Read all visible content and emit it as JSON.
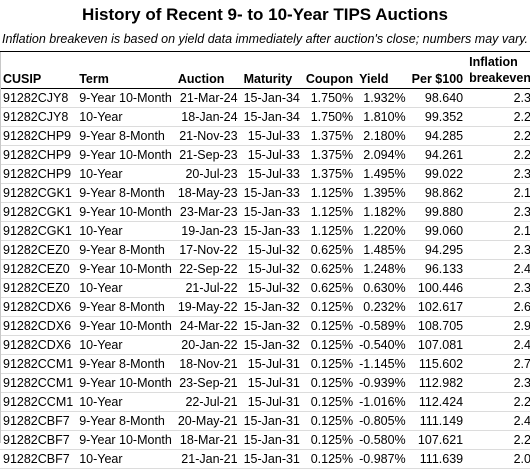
{
  "title": "History of Recent 9- to 10-Year TIPS Auctions",
  "subtitle": "Inflation breakeven is based on yield data immediately after auction's close; numbers may vary.",
  "columns": {
    "cusip": "CUSIP",
    "term": "Term",
    "auction": "Auction",
    "maturity": "Maturity",
    "coupon": "Coupon",
    "yield": "Yield",
    "price": "Per $100",
    "breakeven_line1": "Inflation",
    "breakeven_line2": "breakeven"
  },
  "rows": [
    {
      "cusip": "91282CJY8",
      "term": "9-Year 10-Month",
      "auction": "21-Mar-24",
      "maturity": "15-Jan-34",
      "coupon": "1.750%",
      "yield": "1.932%",
      "price": "98.640",
      "breakeven": "2.3"
    },
    {
      "cusip": "91282CJY8",
      "term": "10-Year",
      "auction": "18-Jan-24",
      "maturity": "15-Jan-34",
      "coupon": "1.750%",
      "yield": "1.810%",
      "price": "99.352",
      "breakeven": "2.2"
    },
    {
      "cusip": "91282CHP9",
      "term": "9-Year 8-Month",
      "auction": "21-Nov-23",
      "maturity": "15-Jul-33",
      "coupon": "1.375%",
      "yield": "2.180%",
      "price": "94.285",
      "breakeven": "2.2"
    },
    {
      "cusip": "91282CHP9",
      "term": "9-Year 10-Month",
      "auction": "21-Sep-23",
      "maturity": "15-Jul-33",
      "coupon": "1.375%",
      "yield": "2.094%",
      "price": "94.261",
      "breakeven": "2.2"
    },
    {
      "cusip": "91282CHP9",
      "term": "10-Year",
      "auction": "20-Jul-23",
      "maturity": "15-Jul-33",
      "coupon": "1.375%",
      "yield": "1.495%",
      "price": "99.022",
      "breakeven": "2.3"
    },
    {
      "cusip": "91282CGK1",
      "term": "9-Year 8-Month",
      "auction": "18-May-23",
      "maturity": "15-Jan-33",
      "coupon": "1.125%",
      "yield": "1.395%",
      "price": "98.862",
      "breakeven": "2.1"
    },
    {
      "cusip": "91282CGK1",
      "term": "9-Year 10-Month",
      "auction": "23-Mar-23",
      "maturity": "15-Jan-33",
      "coupon": "1.125%",
      "yield": "1.182%",
      "price": "99.880",
      "breakeven": "2.3"
    },
    {
      "cusip": "91282CGK1",
      "term": "10-Year",
      "auction": "19-Jan-23",
      "maturity": "15-Jan-33",
      "coupon": "1.125%",
      "yield": "1.220%",
      "price": "99.060",
      "breakeven": "2.1"
    },
    {
      "cusip": "91282CEZ0",
      "term": "9-Year 8-Month",
      "auction": "17-Nov-22",
      "maturity": "15-Jul-32",
      "coupon": "0.625%",
      "yield": "1.485%",
      "price": "94.295",
      "breakeven": "2.3"
    },
    {
      "cusip": "91282CEZ0",
      "term": "9-Year 10-Month",
      "auction": "22-Sep-22",
      "maturity": "15-Jul-32",
      "coupon": "0.625%",
      "yield": "1.248%",
      "price": "96.133",
      "breakeven": "2.4"
    },
    {
      "cusip": "91282CEZ0",
      "term": "10-Year",
      "auction": "21-Jul-22",
      "maturity": "15-Jul-32",
      "coupon": "0.625%",
      "yield": "0.630%",
      "price": "100.446",
      "breakeven": "2.3"
    },
    {
      "cusip": "91282CDX6",
      "term": "9-Year 8-Month",
      "auction": "19-May-22",
      "maturity": "15-Jan-32",
      "coupon": "0.125%",
      "yield": "0.232%",
      "price": "102.617",
      "breakeven": "2.6"
    },
    {
      "cusip": "91282CDX6",
      "term": "9-Year 10-Month",
      "auction": "24-Mar-22",
      "maturity": "15-Jan-32",
      "coupon": "0.125%",
      "yield": "-0.589%",
      "price": "108.705",
      "breakeven": "2.9"
    },
    {
      "cusip": "91282CDX6",
      "term": "10-Year",
      "auction": "20-Jan-22",
      "maturity": "15-Jan-32",
      "coupon": "0.125%",
      "yield": "-0.540%",
      "price": "107.081",
      "breakeven": "2.4"
    },
    {
      "cusip": "91282CCM1",
      "term": "9-Year 8-Month",
      "auction": "18-Nov-21",
      "maturity": "15-Jul-31",
      "coupon": "0.125%",
      "yield": "-1.145%",
      "price": "115.602",
      "breakeven": "2.7"
    },
    {
      "cusip": "91282CCM1",
      "term": "9-Year 10-Month",
      "auction": "23-Sep-21",
      "maturity": "15-Jul-31",
      "coupon": "0.125%",
      "yield": "-0.939%",
      "price": "112.982",
      "breakeven": "2.3"
    },
    {
      "cusip": "91282CCM1",
      "term": "10-Year",
      "auction": "22-Jul-21",
      "maturity": "15-Jul-31",
      "coupon": "0.125%",
      "yield": "-1.016%",
      "price": "112.424",
      "breakeven": "2.2"
    },
    {
      "cusip": "91282CBF7",
      "term": "9-Year 8-Month",
      "auction": "20-May-21",
      "maturity": "15-Jan-31",
      "coupon": "0.125%",
      "yield": "-0.805%",
      "price": "111.149",
      "breakeven": "2.4"
    },
    {
      "cusip": "91282CBF7",
      "term": "9-Year 10-Month",
      "auction": "18-Mar-21",
      "maturity": "15-Jan-31",
      "coupon": "0.125%",
      "yield": "-0.580%",
      "price": "107.621",
      "breakeven": "2.2"
    },
    {
      "cusip": "91282CBF7",
      "term": "10-Year",
      "auction": "21-Jan-21",
      "maturity": "15-Jan-31",
      "coupon": "0.125%",
      "yield": "-0.987%",
      "price": "111.639",
      "breakeven": "2.0"
    }
  ]
}
